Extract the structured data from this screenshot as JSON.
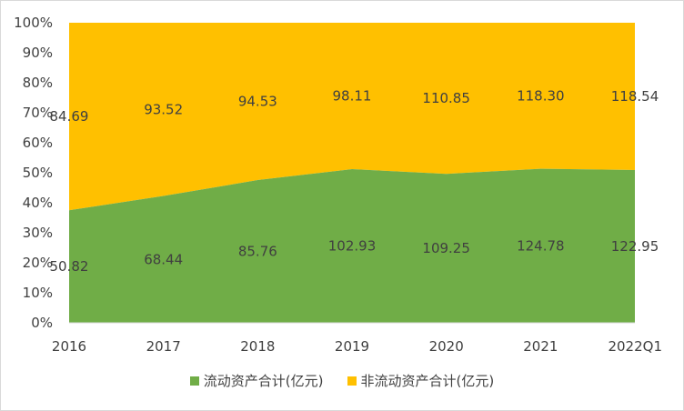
{
  "chart_data": {
    "type": "area",
    "stacking": "percent",
    "categories": [
      "2016",
      "2017",
      "2018",
      "2019",
      "2020",
      "2021",
      "2022Q1"
    ],
    "series": [
      {
        "name": "流动资产合计(亿元)",
        "color": "#70AD47",
        "values": [
          50.82,
          68.44,
          85.76,
          102.93,
          109.25,
          124.78,
          122.95
        ],
        "labels": [
          "50.82",
          "68.44",
          "85.76",
          "102.93",
          "109.25",
          "124.78",
          "122.95"
        ]
      },
      {
        "name": "非流动资产合计(亿元)",
        "color": "#FFC000",
        "values": [
          84.69,
          93.52,
          94.53,
          98.11,
          110.85,
          118.3,
          118.54
        ],
        "labels": [
          "84.69",
          "93.52",
          "94.53",
          "98.11",
          "110.85",
          "118.30",
          "118.54"
        ]
      }
    ],
    "y_ticks": [
      "0%",
      "10%",
      "20%",
      "30%",
      "40%",
      "50%",
      "60%",
      "70%",
      "80%",
      "90%",
      "100%"
    ],
    "ylim": [
      0,
      100
    ],
    "grid": false,
    "legend_position": "bottom"
  }
}
